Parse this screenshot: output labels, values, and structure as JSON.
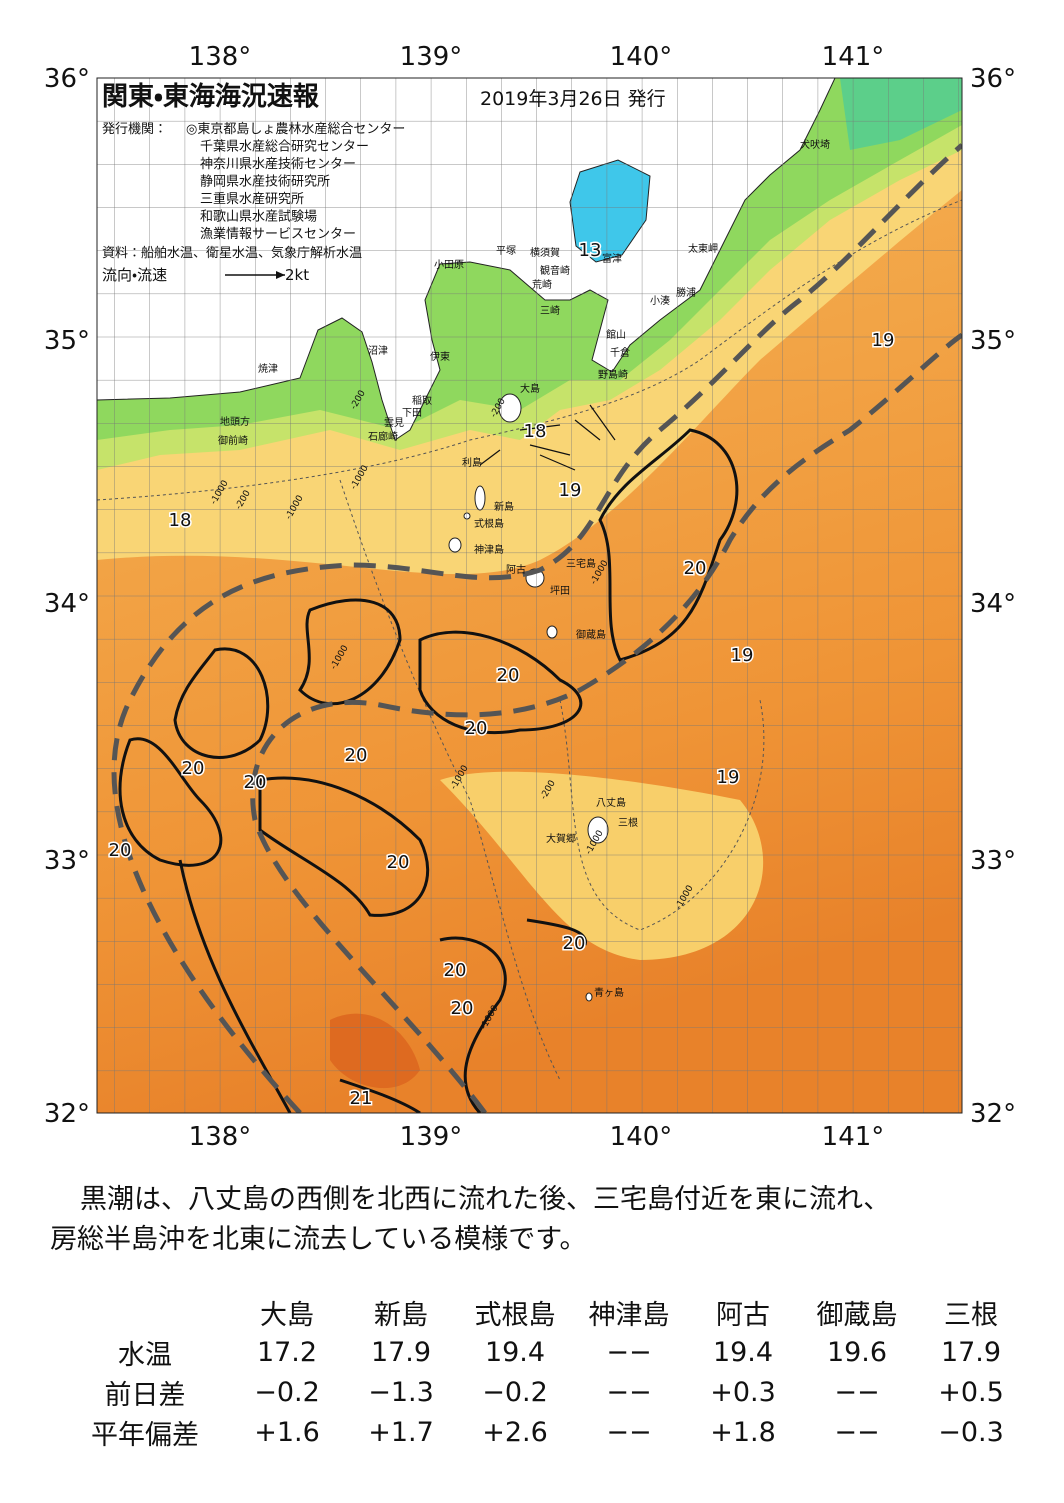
{
  "header": {
    "title": "関東・東海海況速報",
    "date": "2019年3月26日 発行"
  },
  "info": {
    "issuer_label": "発行機関：",
    "issuers": [
      "◎東京都島しょ農林水産総合センター",
      "千葉県水産総合研究センター",
      "神奈川県水産技術センター",
      "静岡県水産技術研究所",
      "三重県水産研究所",
      "和歌山県水産試験場",
      "漁業情報サービスセンター"
    ],
    "source": "資料：船舶水温、衛星水温、気象庁解析水温",
    "flow_label": "流向・流速",
    "flow_scale": "2kt"
  },
  "axes": {
    "lon": [
      "138°",
      "139°",
      "140°",
      "141°"
    ],
    "lat": [
      "36°",
      "35°",
      "34°",
      "33°",
      "32°"
    ]
  },
  "places": [
    "犬吠埼",
    "太東岬",
    "勝浦",
    "小湊",
    "館山",
    "千倉",
    "野島崎",
    "富津",
    "横須賀",
    "観音崎",
    "荒崎",
    "三崎",
    "平塚",
    "小田原",
    "沼津",
    "伊東",
    "稲取",
    "下田",
    "雲見",
    "石廊崎",
    "焼津",
    "地頭方",
    "御前崎",
    "大島",
    "利島",
    "新島",
    "式根島",
    "神津島",
    "三宅島",
    "阿古",
    "坪田",
    "御蔵島",
    "八丈島",
    "三根",
    "大賀郷",
    "青ヶ島"
  ],
  "isotherm_labels": [
    "13",
    "18",
    "19",
    "18",
    "20",
    "19",
    "19",
    "20",
    "20",
    "20",
    "20",
    "20",
    "19",
    "20",
    "20",
    "20",
    "20",
    "20",
    "21"
  ],
  "depth_labels": [
    "-1000",
    "-200",
    "-1000",
    "-200",
    "-1000",
    "-200",
    "-1000",
    "-1000",
    "-1000",
    "-200",
    "-1000",
    "-1000",
    "-1000"
  ],
  "description": [
    "黒潮は、八丈島の西側を北西に流れた後、三宅島付近を東に流れ、",
    "房総半島沖を北東に流去している模様です。"
  ],
  "table": {
    "columns": [
      "大島",
      "新島",
      "式根島",
      "神津島",
      "阿古",
      "御蔵島",
      "三根"
    ],
    "rows": [
      {
        "label": "水温",
        "values": [
          "17.2",
          "17.9",
          "19.4",
          "−−",
          "19.4",
          "19.6",
          "17.9"
        ]
      },
      {
        "label": "前日差",
        "values": [
          "−0.2",
          "−1.3",
          "−0.2",
          "−−",
          "+0.3",
          "−−",
          "+0.5"
        ]
      },
      {
        "label": "平年偏差",
        "values": [
          "+1.6",
          "+1.7",
          "+2.6",
          "−−",
          "+1.8",
          "−−",
          "−0.3"
        ]
      }
    ]
  }
}
